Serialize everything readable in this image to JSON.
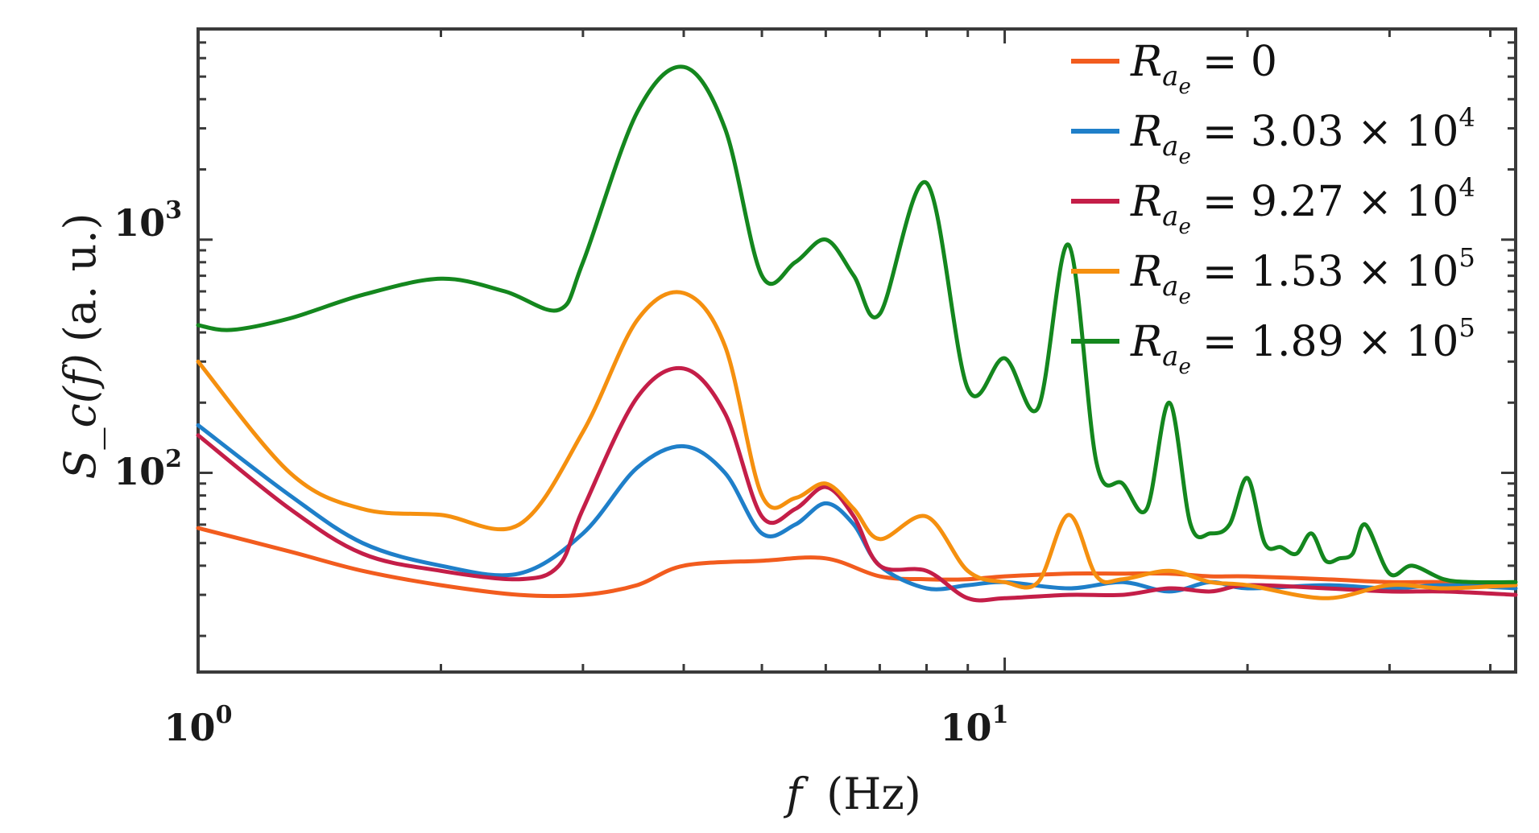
{
  "chart_data": {
    "type": "line",
    "title": "",
    "xscale": "log",
    "yscale": "log",
    "xlim": [
      1,
      43
    ],
    "ylim": [
      14,
      8000
    ],
    "xlabel": "f",
    "xlabel_unit": "(Hz)",
    "ylabel": "S_c(f)",
    "ylabel_unit": "(a. u.)",
    "xticks": [
      {
        "base": "10",
        "exp": "0",
        "value": 1
      },
      {
        "base": "10",
        "exp": "1",
        "value": 10
      }
    ],
    "yticks": [
      {
        "base": "10",
        "exp": "2",
        "value": 100
      },
      {
        "base": "10",
        "exp": "3",
        "value": 1000
      }
    ],
    "legend_position": "top-right",
    "series": [
      {
        "name": "R_ae = 0",
        "symbol": "R",
        "subscript": "a",
        "subsubscript": "e",
        "value_text": "= 0",
        "color": "#f25c1e",
        "x": [
          1.0,
          1.3,
          1.6,
          2.0,
          2.5,
          3.0,
          3.5,
          4.0,
          5.0,
          6.0,
          7.0,
          8.0,
          9.0,
          10.0,
          12.0,
          14.0,
          16.0,
          18.0,
          20.0,
          25.0,
          30.0,
          35.0,
          43.0
        ],
        "y": [
          58,
          46,
          38,
          33,
          30,
          30,
          33,
          40,
          42,
          43,
          36,
          35,
          35,
          36,
          37,
          37,
          37,
          36,
          36,
          35,
          34,
          34,
          33
        ]
      },
      {
        "name": "R_ae = 3.03 × 10^4",
        "symbol": "R",
        "subscript": "a",
        "subsubscript": "e",
        "value_text": "= 3.03 × 10",
        "exponent": "4",
        "color": "#1f7fc9",
        "x": [
          1.0,
          1.3,
          1.6,
          2.0,
          2.5,
          3.0,
          3.5,
          4.0,
          4.5,
          5.0,
          5.5,
          6.0,
          6.5,
          7.0,
          8.0,
          9.0,
          10.0,
          12.0,
          14.0,
          16.0,
          18.0,
          20.0,
          25.0,
          30.0,
          35.0,
          43.0
        ],
        "y": [
          160,
          80,
          50,
          40,
          37,
          55,
          105,
          130,
          100,
          55,
          60,
          74,
          60,
          40,
          32,
          33,
          34,
          32,
          34,
          31,
          34,
          32,
          33,
          32,
          33,
          32
        ]
      },
      {
        "name": "R_ae = 9.27 × 10^4",
        "symbol": "R",
        "subscript": "a",
        "subsubscript": "e",
        "value_text": "= 9.27 × 10",
        "exponent": "4",
        "color": "#c41e48",
        "x": [
          1.0,
          1.3,
          1.6,
          2.0,
          2.5,
          2.8,
          3.0,
          3.5,
          4.0,
          4.5,
          5.0,
          5.5,
          6.0,
          6.5,
          7.0,
          8.0,
          9.0,
          10.0,
          12.0,
          14.0,
          16.0,
          18.0,
          20.0,
          25.0,
          30.0,
          35.0,
          43.0
        ],
        "y": [
          145,
          70,
          45,
          38,
          35,
          40,
          70,
          210,
          280,
          180,
          65,
          70,
          87,
          65,
          40,
          38,
          29,
          29,
          30,
          30,
          32,
          31,
          33,
          32,
          31,
          31,
          30
        ]
      },
      {
        "name": "R_ae = 1.53 × 10^5",
        "symbol": "R",
        "subscript": "a",
        "subsubscript": "e",
        "value_text": "= 1.53 × 10",
        "exponent": "5",
        "color": "#f5900f",
        "x": [
          1.0,
          1.3,
          1.6,
          2.0,
          2.5,
          3.0,
          3.5,
          4.0,
          4.5,
          5.0,
          5.5,
          6.0,
          6.5,
          7.0,
          8.0,
          9.0,
          10.0,
          11.0,
          12.0,
          13.0,
          14.0,
          16.0,
          18.0,
          20.0,
          25.0,
          30.0,
          35.0,
          43.0
        ],
        "y": [
          300,
          100,
          70,
          66,
          60,
          150,
          450,
          590,
          350,
          80,
          78,
          90,
          70,
          52,
          65,
          38,
          34,
          34,
          66,
          36,
          35,
          38,
          34,
          33,
          29,
          33,
          32,
          33
        ]
      },
      {
        "name": "R_ae = 1.89 × 10^5",
        "symbol": "R",
        "subscript": "a",
        "subsubscript": "e",
        "value_text": "= 1.89 × 10",
        "exponent": "5",
        "color": "#14871e",
        "x": [
          1.0,
          1.1,
          1.3,
          1.6,
          2.0,
          2.4,
          2.8,
          3.0,
          3.5,
          4.0,
          4.5,
          5.0,
          5.5,
          6.0,
          6.5,
          7.0,
          8.0,
          9.0,
          10.0,
          11.0,
          12.0,
          13.0,
          14.0,
          15.0,
          16.0,
          17.0,
          18.0,
          19.0,
          20.0,
          21.0,
          22.0,
          23.0,
          24.0,
          25.0,
          26.0,
          27.0,
          28.0,
          30.0,
          32.0,
          35.0,
          38.0,
          43.0
        ],
        "y": [
          430,
          410,
          460,
          580,
          680,
          600,
          500,
          800,
          3500,
          5500,
          3000,
          700,
          800,
          1000,
          700,
          480,
          1750,
          230,
          310,
          190,
          950,
          110,
          90,
          70,
          200,
          60,
          55,
          60,
          95,
          50,
          48,
          45,
          55,
          42,
          43,
          45,
          60,
          37,
          40,
          35,
          34,
          34
        ]
      }
    ]
  }
}
